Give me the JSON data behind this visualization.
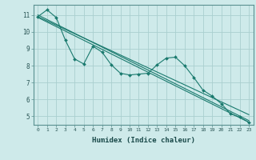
{
  "xlabel": "Humidex (Indice chaleur)",
  "background_color": "#ceeaea",
  "grid_color": "#aacfcf",
  "line_color": "#1a7a6e",
  "xlim": [
    -0.5,
    23.5
  ],
  "ylim": [
    4.5,
    11.6
  ],
  "yticks": [
    5,
    6,
    7,
    8,
    9,
    10,
    11
  ],
  "xticks": [
    0,
    1,
    2,
    3,
    4,
    5,
    6,
    7,
    8,
    9,
    10,
    11,
    12,
    13,
    14,
    15,
    16,
    17,
    18,
    19,
    20,
    21,
    22,
    23
  ],
  "series1_x": [
    0,
    1,
    2,
    3,
    4,
    5,
    6,
    7,
    8,
    9,
    10,
    11,
    12,
    13,
    14,
    15,
    16,
    17,
    18,
    19,
    20,
    21,
    22,
    23
  ],
  "series1_y": [
    10.9,
    11.3,
    10.85,
    9.5,
    8.4,
    8.1,
    9.15,
    8.8,
    8.05,
    7.55,
    7.45,
    7.5,
    7.55,
    8.05,
    8.45,
    8.5,
    8.0,
    7.3,
    6.55,
    6.2,
    5.75,
    5.15,
    4.95,
    4.65
  ],
  "trend1_x": [
    0,
    23
  ],
  "trend1_y": [
    11.0,
    4.75
  ],
  "trend2_x": [
    0,
    23
  ],
  "trend2_y": [
    10.9,
    5.1
  ],
  "trend3_x": [
    0,
    23
  ],
  "trend3_y": [
    10.85,
    4.65
  ]
}
